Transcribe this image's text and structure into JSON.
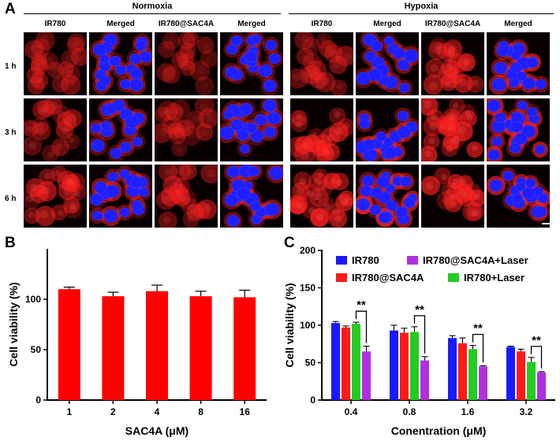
{
  "panel_a": {
    "letter": "A",
    "conditions": [
      "Normoxia",
      "Hypoxia"
    ],
    "columns": [
      "IR780",
      "Merged",
      "IR780@SAC4A",
      "Merged",
      "IR780",
      "Merged",
      "IR780@SAC4A",
      "Merged"
    ],
    "rows": [
      "1 h",
      "3 h",
      "6 h"
    ]
  },
  "panel_b": {
    "letter": "B",
    "chart_data": {
      "type": "bar",
      "categories": [
        "1",
        "2",
        "4",
        "8",
        "16"
      ],
      "values": [
        110,
        103,
        108,
        103,
        102
      ],
      "errors": [
        2,
        4,
        6,
        5,
        7
      ],
      "xlabel": "SAC4A (μM)",
      "ylabel": "Cell viability (%)",
      "ylim": [
        0,
        150
      ],
      "yticks": [
        0,
        50,
        100
      ],
      "bar_color": "#ff0000"
    }
  },
  "panel_c": {
    "letter": "C",
    "chart_data": {
      "type": "bar",
      "categories": [
        "0.4",
        "0.8",
        "1.6",
        "3.2"
      ],
      "series": [
        {
          "name": "IR780",
          "color": "#1a1aff",
          "values": [
            103,
            93,
            83,
            71
          ],
          "errors": [
            2,
            7,
            3,
            1
          ]
        },
        {
          "name": "IR780@SAC4A",
          "color": "#ff1a1a",
          "values": [
            97,
            90,
            76,
            65
          ],
          "errors": [
            2,
            6,
            7,
            3
          ]
        },
        {
          "name": "IR780+Laser",
          "color": "#22cc22",
          "values": [
            102,
            91,
            68,
            51
          ],
          "errors": [
            2,
            7,
            5,
            6
          ]
        },
        {
          "name": "IR780@SAC4A+Laser",
          "color": "#b030e0",
          "values": [
            65,
            53,
            45,
            37
          ],
          "errors": [
            7,
            5,
            1,
            1
          ]
        }
      ],
      "legend": [
        {
          "name": "IR780",
          "color": "#1a1aff"
        },
        {
          "name": "IR780@SAC4A+Laser",
          "color": "#b030e0"
        },
        {
          "name": "IR780@SAC4A",
          "color": "#ff1a1a"
        },
        {
          "name": "IR780+Laser",
          "color": "#22cc22"
        }
      ],
      "significance": [
        "**",
        "**",
        "**",
        "**"
      ],
      "xlabel": "Conentration (μM)",
      "ylabel": "Cell viability (%)",
      "ylim": [
        0,
        200
      ],
      "yticks": [
        0,
        50,
        100,
        150,
        200
      ]
    }
  }
}
